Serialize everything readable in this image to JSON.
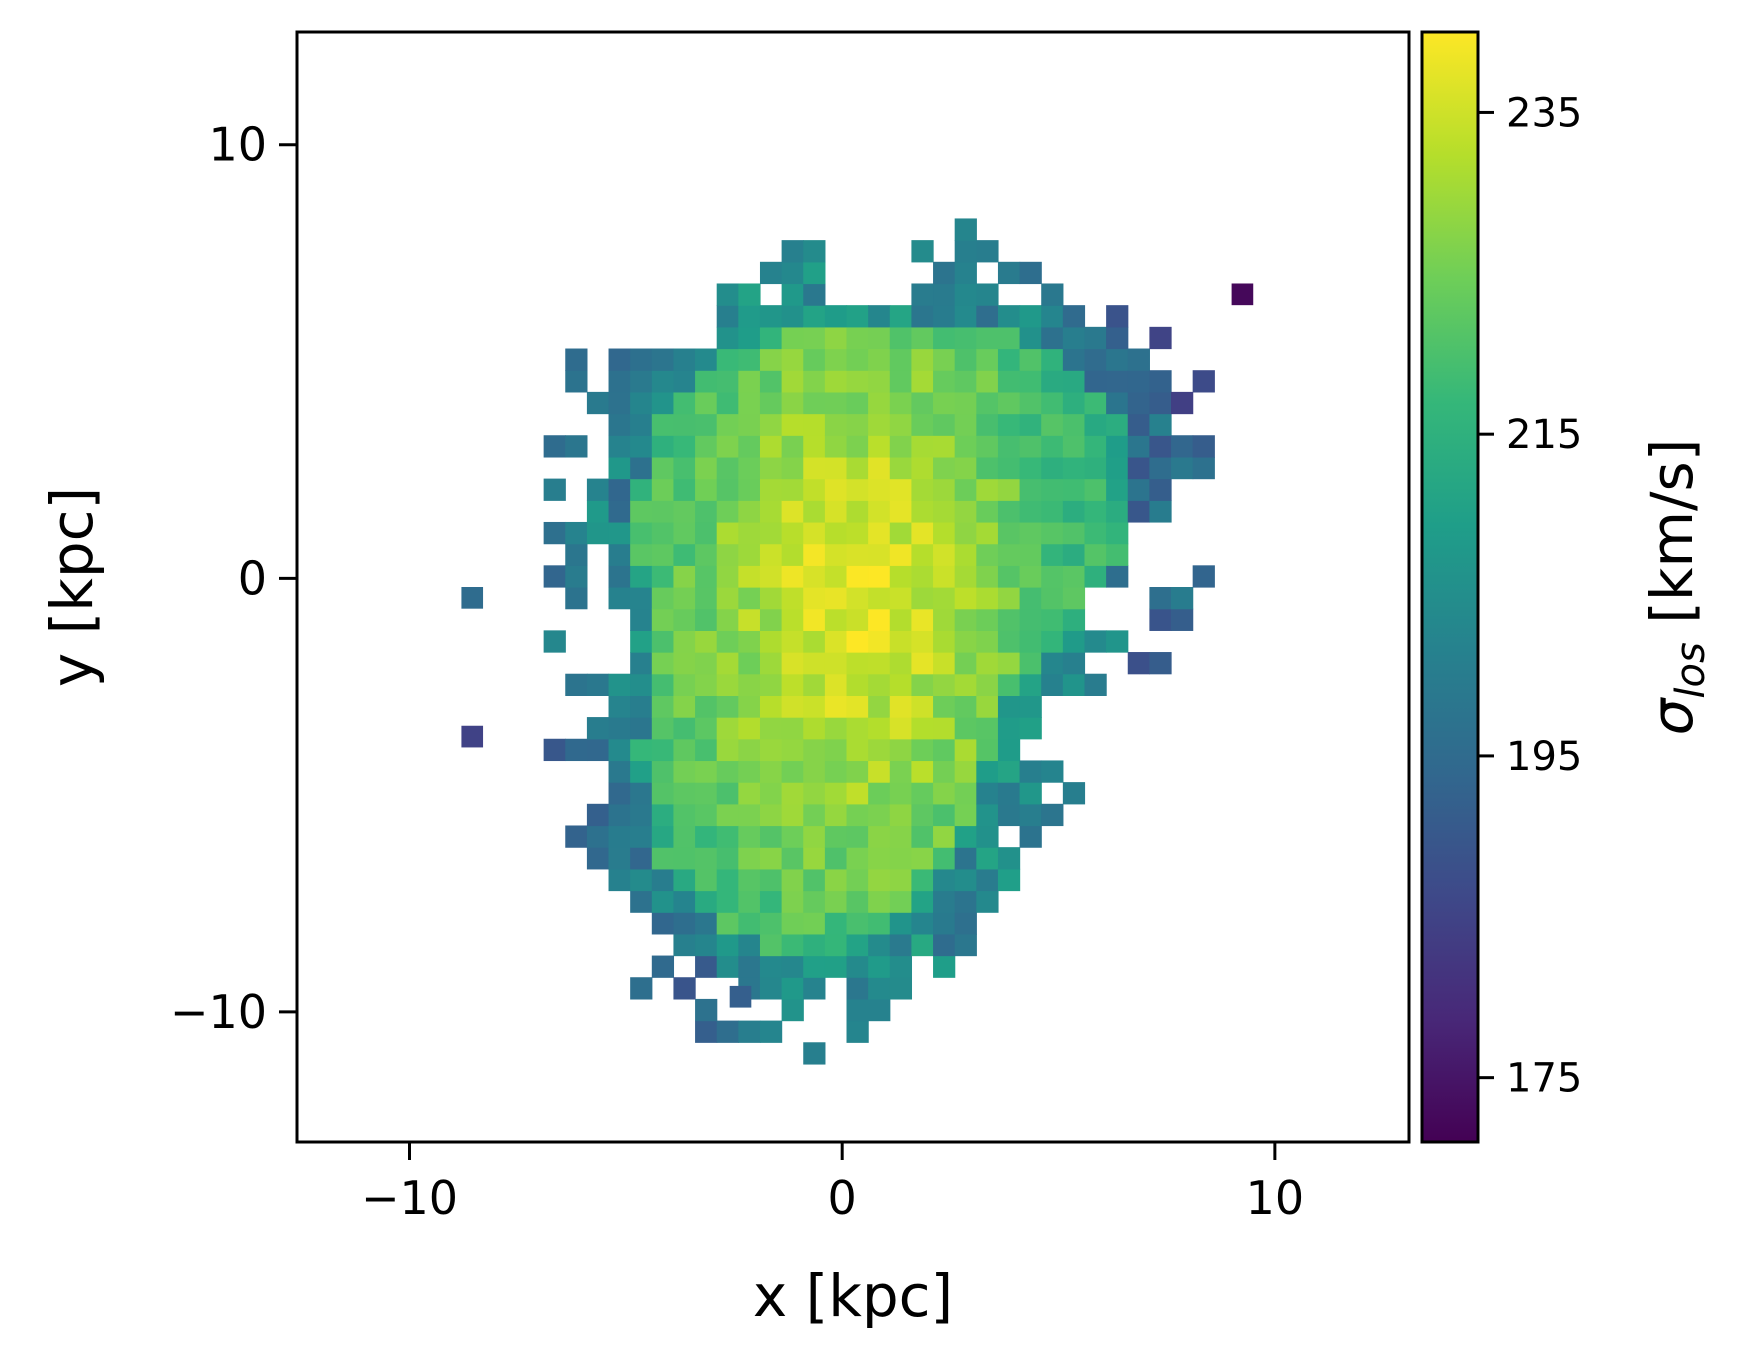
{
  "chart_data": {
    "type": "heatmap",
    "title": "",
    "xlabel": "x [kpc]",
    "ylabel": "y [kpc]",
    "colorbar_label": "σ_los [km/s]",
    "colorbar_label_main": "σ",
    "colorbar_label_sub": "los",
    "colorbar_label_units": " [km/s]",
    "colormap": "viridis",
    "xlim": [
      -12.6,
      13.1
    ],
    "ylim": [
      -13.0,
      12.6
    ],
    "xticks": [
      -10,
      0,
      10
    ],
    "yticks": [
      -10,
      0,
      10
    ],
    "xtick_labels": [
      "−10",
      "0",
      "10"
    ],
    "ytick_labels": [
      "−10",
      "0",
      "10"
    ],
    "clim": [
      171,
      240
    ],
    "colorbar_ticks": [
      175,
      195,
      215,
      235
    ],
    "colorbar_tick_labels": [
      "175",
      "195",
      "215",
      "235"
    ],
    "grid": false,
    "pixel_size_kpc": 0.5,
    "map_center_kpc": [
      0.3,
      -0.5
    ],
    "map_extent_kpc": {
      "x": [
        -9.4,
        9.4
      ],
      "y": [
        -11.2,
        10.3
      ]
    },
    "void_regions_kpc": [
      [
        -0.6,
        1.4,
        6.3,
        7.8
      ],
      [
        -5.1,
        -2.8,
        5.3,
        6.6
      ],
      [
        6.5,
        7.9,
        0.0,
        1.2
      ],
      [
        5.7,
        7.3,
        -1.2,
        0.0
      ],
      [
        -7.4,
        -5.4,
        -5.1,
        -4.7
      ],
      [
        -7.9,
        -6.7,
        -3.0,
        -1.0
      ],
      [
        -6.2,
        -5.0,
        -2.0,
        -0.8
      ]
    ]
  },
  "colors": {
    "viridis_stops": [
      "#440154",
      "#482878",
      "#3e4989",
      "#31688e",
      "#26828e",
      "#1f9e89",
      "#35b779",
      "#6ece58",
      "#b5de2b",
      "#fde725"
    ],
    "axes": "#000000",
    "background": "#ffffff"
  }
}
